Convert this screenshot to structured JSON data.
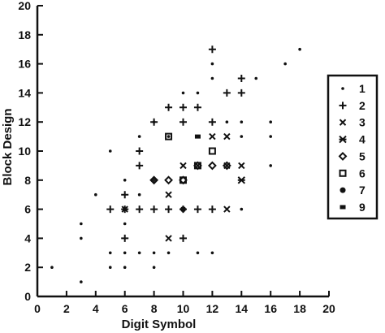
{
  "chart_data": {
    "type": "scatter",
    "title": "",
    "xlabel": "Digit Symbol",
    "ylabel": "Block Design",
    "xlim": [
      0,
      20
    ],
    "ylim": [
      0,
      20
    ],
    "xticks": [
      "0",
      "2",
      "4",
      "6",
      "8",
      "10",
      "12",
      "14",
      "16",
      "18",
      "20"
    ],
    "yticks": [
      "0",
      "2",
      "4",
      "6",
      "8",
      "10",
      "12",
      "14",
      "16",
      "18",
      "20"
    ],
    "grid": false,
    "legend_position": "right",
    "legend": [
      "1",
      "2",
      "3",
      "4",
      "5",
      "6",
      "7",
      "9"
    ],
    "series": [
      {
        "name": "1",
        "marker": "dot",
        "points": [
          [
            1,
            2
          ],
          [
            3,
            1
          ],
          [
            3,
            4
          ],
          [
            3,
            5
          ],
          [
            4,
            7
          ],
          [
            5,
            2
          ],
          [
            5,
            3
          ],
          [
            5,
            10
          ],
          [
            6,
            2
          ],
          [
            6,
            3
          ],
          [
            6,
            5
          ],
          [
            6,
            8
          ],
          [
            7,
            3
          ],
          [
            7,
            7
          ],
          [
            7,
            11
          ],
          [
            8,
            2
          ],
          [
            8,
            3
          ],
          [
            8,
            12
          ],
          [
            9,
            3
          ],
          [
            9,
            11
          ],
          [
            10,
            14
          ],
          [
            11,
            3
          ],
          [
            11,
            14
          ],
          [
            12,
            3
          ],
          [
            12,
            15
          ],
          [
            12,
            16
          ],
          [
            13,
            12
          ],
          [
            14,
            6
          ],
          [
            14,
            11
          ],
          [
            14,
            12
          ],
          [
            15,
            15
          ],
          [
            16,
            9
          ],
          [
            16,
            11
          ],
          [
            16,
            12
          ],
          [
            17,
            16
          ],
          [
            18,
            17
          ]
        ]
      },
      {
        "name": "2",
        "marker": "plus",
        "points": [
          [
            5,
            6
          ],
          [
            6,
            4
          ],
          [
            6,
            6
          ],
          [
            6,
            7
          ],
          [
            7,
            6
          ],
          [
            7,
            9
          ],
          [
            7,
            10
          ],
          [
            8,
            6
          ],
          [
            8,
            8
          ],
          [
            8,
            12
          ],
          [
            9,
            6
          ],
          [
            9,
            13
          ],
          [
            10,
            4
          ],
          [
            10,
            6
          ],
          [
            10,
            12
          ],
          [
            10,
            13
          ],
          [
            11,
            6
          ],
          [
            11,
            13
          ],
          [
            12,
            6
          ],
          [
            12,
            12
          ],
          [
            12,
            17
          ],
          [
            13,
            14
          ],
          [
            14,
            14
          ],
          [
            14,
            15
          ]
        ]
      },
      {
        "name": "3",
        "marker": "x",
        "points": [
          [
            6,
            6
          ],
          [
            9,
            4
          ],
          [
            9,
            7
          ],
          [
            10,
            9
          ],
          [
            11,
            9
          ],
          [
            12,
            11
          ],
          [
            13,
            6
          ],
          [
            13,
            9
          ],
          [
            13,
            11
          ],
          [
            14,
            9
          ]
        ]
      },
      {
        "name": "4",
        "marker": "asterisk",
        "points": [
          [
            14,
            8
          ]
        ]
      },
      {
        "name": "5",
        "marker": "diamond",
        "points": [
          [
            8,
            8
          ],
          [
            9,
            8
          ],
          [
            10,
            8
          ],
          [
            11,
            9
          ],
          [
            12,
            9
          ],
          [
            13,
            9
          ]
        ]
      },
      {
        "name": "6",
        "marker": "square",
        "points": [
          [
            9,
            11
          ],
          [
            10,
            8
          ],
          [
            11,
            9
          ],
          [
            12,
            10
          ]
        ]
      },
      {
        "name": "7",
        "marker": "filled-circle",
        "points": [
          [
            10,
            6
          ]
        ]
      },
      {
        "name": "9",
        "marker": "bar",
        "points": [
          [
            11,
            11
          ]
        ]
      }
    ]
  }
}
